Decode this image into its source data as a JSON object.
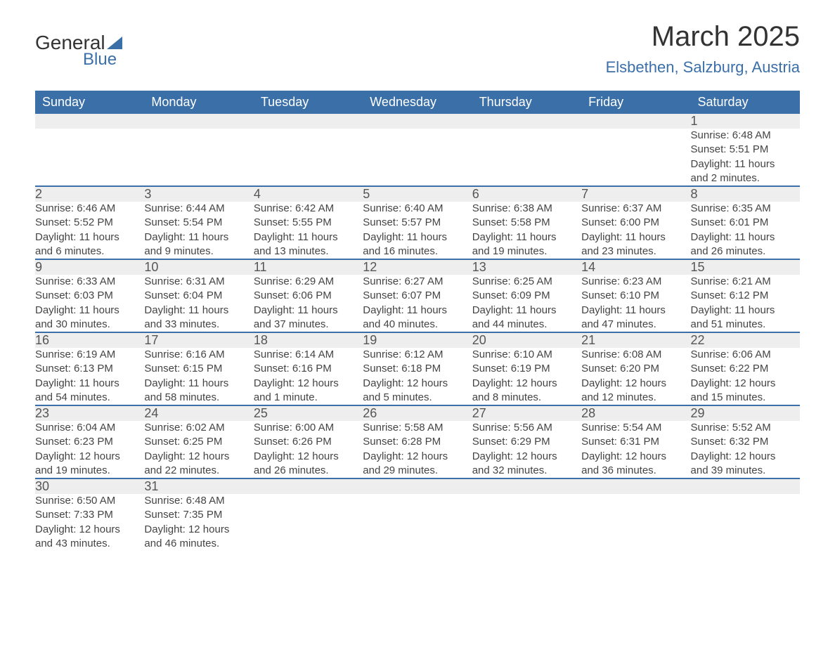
{
  "logo": {
    "text1": "General",
    "text2": "Blue"
  },
  "title": "March 2025",
  "location": "Elsbethen, Salzburg, Austria",
  "colors": {
    "header_bg": "#3b6fa8",
    "header_text": "#ffffff",
    "daynum_bg": "#eeeeee",
    "row_border": "#3b6fa8",
    "text": "#444444",
    "title_text": "#333333",
    "location_text": "#3b6fa8"
  },
  "weekdays": [
    "Sunday",
    "Monday",
    "Tuesday",
    "Wednesday",
    "Thursday",
    "Friday",
    "Saturday"
  ],
  "weeks": [
    {
      "nums": [
        "",
        "",
        "",
        "",
        "",
        "",
        "1"
      ],
      "cells": [
        {
          "empty": true
        },
        {
          "empty": true
        },
        {
          "empty": true
        },
        {
          "empty": true
        },
        {
          "empty": true
        },
        {
          "empty": true
        },
        {
          "sunrise": "Sunrise: 6:48 AM",
          "sunset": "Sunset: 5:51 PM",
          "daylight1": "Daylight: 11 hours",
          "daylight2": "and 2 minutes."
        }
      ]
    },
    {
      "nums": [
        "2",
        "3",
        "4",
        "5",
        "6",
        "7",
        "8"
      ],
      "cells": [
        {
          "sunrise": "Sunrise: 6:46 AM",
          "sunset": "Sunset: 5:52 PM",
          "daylight1": "Daylight: 11 hours",
          "daylight2": "and 6 minutes."
        },
        {
          "sunrise": "Sunrise: 6:44 AM",
          "sunset": "Sunset: 5:54 PM",
          "daylight1": "Daylight: 11 hours",
          "daylight2": "and 9 minutes."
        },
        {
          "sunrise": "Sunrise: 6:42 AM",
          "sunset": "Sunset: 5:55 PM",
          "daylight1": "Daylight: 11 hours",
          "daylight2": "and 13 minutes."
        },
        {
          "sunrise": "Sunrise: 6:40 AM",
          "sunset": "Sunset: 5:57 PM",
          "daylight1": "Daylight: 11 hours",
          "daylight2": "and 16 minutes."
        },
        {
          "sunrise": "Sunrise: 6:38 AM",
          "sunset": "Sunset: 5:58 PM",
          "daylight1": "Daylight: 11 hours",
          "daylight2": "and 19 minutes."
        },
        {
          "sunrise": "Sunrise: 6:37 AM",
          "sunset": "Sunset: 6:00 PM",
          "daylight1": "Daylight: 11 hours",
          "daylight2": "and 23 minutes."
        },
        {
          "sunrise": "Sunrise: 6:35 AM",
          "sunset": "Sunset: 6:01 PM",
          "daylight1": "Daylight: 11 hours",
          "daylight2": "and 26 minutes."
        }
      ]
    },
    {
      "nums": [
        "9",
        "10",
        "11",
        "12",
        "13",
        "14",
        "15"
      ],
      "cells": [
        {
          "sunrise": "Sunrise: 6:33 AM",
          "sunset": "Sunset: 6:03 PM",
          "daylight1": "Daylight: 11 hours",
          "daylight2": "and 30 minutes."
        },
        {
          "sunrise": "Sunrise: 6:31 AM",
          "sunset": "Sunset: 6:04 PM",
          "daylight1": "Daylight: 11 hours",
          "daylight2": "and 33 minutes."
        },
        {
          "sunrise": "Sunrise: 6:29 AM",
          "sunset": "Sunset: 6:06 PM",
          "daylight1": "Daylight: 11 hours",
          "daylight2": "and 37 minutes."
        },
        {
          "sunrise": "Sunrise: 6:27 AM",
          "sunset": "Sunset: 6:07 PM",
          "daylight1": "Daylight: 11 hours",
          "daylight2": "and 40 minutes."
        },
        {
          "sunrise": "Sunrise: 6:25 AM",
          "sunset": "Sunset: 6:09 PM",
          "daylight1": "Daylight: 11 hours",
          "daylight2": "and 44 minutes."
        },
        {
          "sunrise": "Sunrise: 6:23 AM",
          "sunset": "Sunset: 6:10 PM",
          "daylight1": "Daylight: 11 hours",
          "daylight2": "and 47 minutes."
        },
        {
          "sunrise": "Sunrise: 6:21 AM",
          "sunset": "Sunset: 6:12 PM",
          "daylight1": "Daylight: 11 hours",
          "daylight2": "and 51 minutes."
        }
      ]
    },
    {
      "nums": [
        "16",
        "17",
        "18",
        "19",
        "20",
        "21",
        "22"
      ],
      "cells": [
        {
          "sunrise": "Sunrise: 6:19 AM",
          "sunset": "Sunset: 6:13 PM",
          "daylight1": "Daylight: 11 hours",
          "daylight2": "and 54 minutes."
        },
        {
          "sunrise": "Sunrise: 6:16 AM",
          "sunset": "Sunset: 6:15 PM",
          "daylight1": "Daylight: 11 hours",
          "daylight2": "and 58 minutes."
        },
        {
          "sunrise": "Sunrise: 6:14 AM",
          "sunset": "Sunset: 6:16 PM",
          "daylight1": "Daylight: 12 hours",
          "daylight2": "and 1 minute."
        },
        {
          "sunrise": "Sunrise: 6:12 AM",
          "sunset": "Sunset: 6:18 PM",
          "daylight1": "Daylight: 12 hours",
          "daylight2": "and 5 minutes."
        },
        {
          "sunrise": "Sunrise: 6:10 AM",
          "sunset": "Sunset: 6:19 PM",
          "daylight1": "Daylight: 12 hours",
          "daylight2": "and 8 minutes."
        },
        {
          "sunrise": "Sunrise: 6:08 AM",
          "sunset": "Sunset: 6:20 PM",
          "daylight1": "Daylight: 12 hours",
          "daylight2": "and 12 minutes."
        },
        {
          "sunrise": "Sunrise: 6:06 AM",
          "sunset": "Sunset: 6:22 PM",
          "daylight1": "Daylight: 12 hours",
          "daylight2": "and 15 minutes."
        }
      ]
    },
    {
      "nums": [
        "23",
        "24",
        "25",
        "26",
        "27",
        "28",
        "29"
      ],
      "cells": [
        {
          "sunrise": "Sunrise: 6:04 AM",
          "sunset": "Sunset: 6:23 PM",
          "daylight1": "Daylight: 12 hours",
          "daylight2": "and 19 minutes."
        },
        {
          "sunrise": "Sunrise: 6:02 AM",
          "sunset": "Sunset: 6:25 PM",
          "daylight1": "Daylight: 12 hours",
          "daylight2": "and 22 minutes."
        },
        {
          "sunrise": "Sunrise: 6:00 AM",
          "sunset": "Sunset: 6:26 PM",
          "daylight1": "Daylight: 12 hours",
          "daylight2": "and 26 minutes."
        },
        {
          "sunrise": "Sunrise: 5:58 AM",
          "sunset": "Sunset: 6:28 PM",
          "daylight1": "Daylight: 12 hours",
          "daylight2": "and 29 minutes."
        },
        {
          "sunrise": "Sunrise: 5:56 AM",
          "sunset": "Sunset: 6:29 PM",
          "daylight1": "Daylight: 12 hours",
          "daylight2": "and 32 minutes."
        },
        {
          "sunrise": "Sunrise: 5:54 AM",
          "sunset": "Sunset: 6:31 PM",
          "daylight1": "Daylight: 12 hours",
          "daylight2": "and 36 minutes."
        },
        {
          "sunrise": "Sunrise: 5:52 AM",
          "sunset": "Sunset: 6:32 PM",
          "daylight1": "Daylight: 12 hours",
          "daylight2": "and 39 minutes."
        }
      ]
    },
    {
      "nums": [
        "30",
        "31",
        "",
        "",
        "",
        "",
        ""
      ],
      "cells": [
        {
          "sunrise": "Sunrise: 6:50 AM",
          "sunset": "Sunset: 7:33 PM",
          "daylight1": "Daylight: 12 hours",
          "daylight2": "and 43 minutes."
        },
        {
          "sunrise": "Sunrise: 6:48 AM",
          "sunset": "Sunset: 7:35 PM",
          "daylight1": "Daylight: 12 hours",
          "daylight2": "and 46 minutes."
        },
        {
          "empty": true
        },
        {
          "empty": true
        },
        {
          "empty": true
        },
        {
          "empty": true
        },
        {
          "empty": true
        }
      ]
    }
  ]
}
